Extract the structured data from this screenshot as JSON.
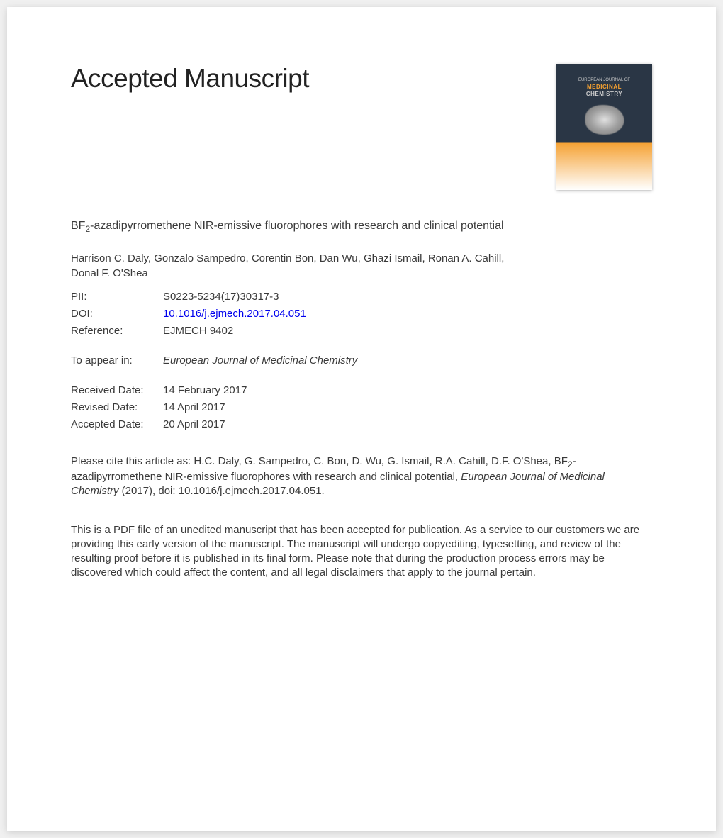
{
  "heading": "Accepted Manuscript",
  "journal_thumb": {
    "line1": "EUROPEAN JOURNAL OF",
    "line2": "MEDICINAL",
    "line3": "CHEMISTRY"
  },
  "article_title_parts": {
    "prefix": "BF",
    "sub": "2",
    "suffix": "-azadipyrromethene NIR-emissive fluorophores with research and clinical potential"
  },
  "authors": "Harrison C. Daly, Gonzalo Sampedro, Corentin Bon, Dan Wu, Ghazi Ismail, Ronan A. Cahill, Donal F. O'Shea",
  "meta": {
    "pii": {
      "label": "PII:",
      "value": "S0223-5234(17)30317-3"
    },
    "doi": {
      "label": "DOI:",
      "value": "10.1016/j.ejmech.2017.04.051"
    },
    "reference": {
      "label": "Reference:",
      "value": "EJMECH 9402"
    },
    "appear": {
      "label": "To appear in:",
      "value": "European Journal of Medicinal Chemistry"
    },
    "received": {
      "label": "Received Date:",
      "value": "14 February 2017"
    },
    "revised": {
      "label": "Revised Date:",
      "value": "14 April 2017"
    },
    "accepted": {
      "label": "Accepted Date:",
      "value": "20 April 2017"
    }
  },
  "citation": {
    "lead": "Please cite this article as: H.C. Daly, G. Sampedro, C. Bon, D. Wu, G. Ismail, R.A. Cahill, D.F. O'Shea, BF",
    "sub": "2",
    "mid": "-azadipyrromethene NIR-emissive fluorophores with research and clinical potential, ",
    "journal": "European Journal of Medicinal Chemistry",
    "tail": " (2017), doi: 10.1016/j.ejmech.2017.04.051."
  },
  "disclaimer": "This is a PDF file of an unedited manuscript that has been accepted for publication. As a service to our customers we are providing this early version of the manuscript. The manuscript will undergo copyediting, typesetting, and review of the resulting proof before it is published in its final form. Please note that during the production process errors may be discovered which could affect the content, and all legal disclaimers that apply to the journal pertain."
}
